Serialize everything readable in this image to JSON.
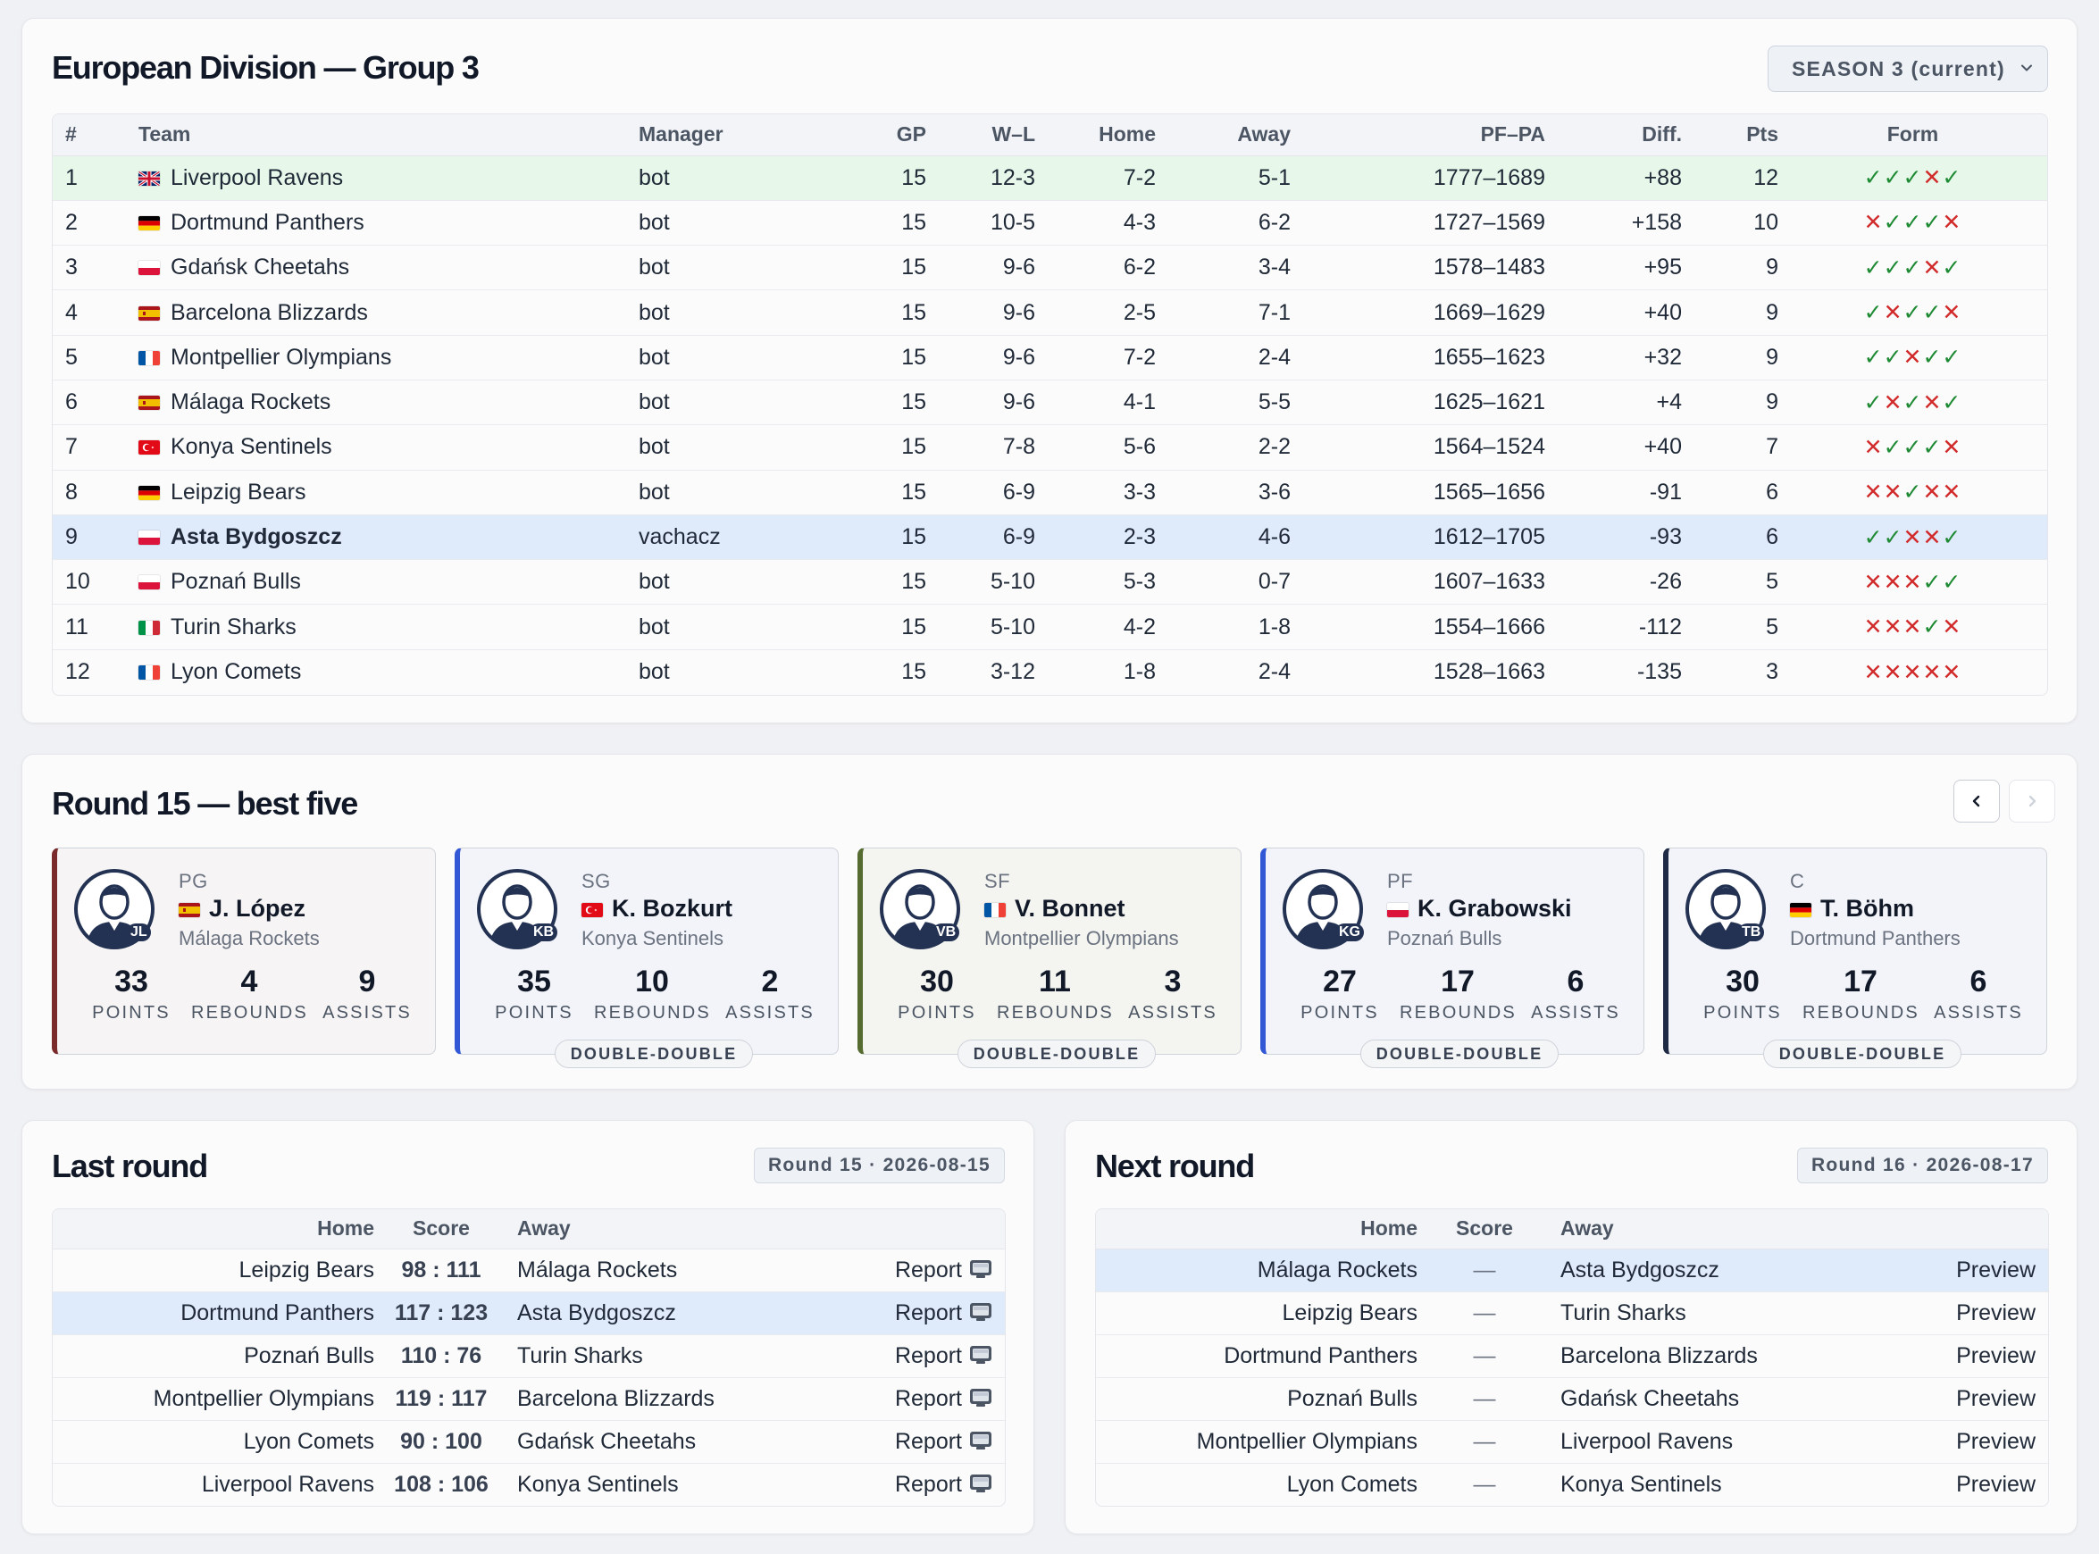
{
  "standings": {
    "title": "European Division — Group 3",
    "season_select": "SEASON 3 (current)",
    "columns": [
      "#",
      "Team",
      "Manager",
      "GP",
      "W–L",
      "Home",
      "Away",
      "PF–PA",
      "Diff.",
      "Pts",
      "Form"
    ],
    "rows": [
      {
        "rank": "1",
        "flag": "gb",
        "team": "Liverpool Ravens",
        "manager": "bot",
        "gp": "15",
        "wl": "12-3",
        "home": "7-2",
        "away": "5-1",
        "pfpa": "1777–1689",
        "diff": "+88",
        "pts": "12",
        "form": "WWWLW"
      },
      {
        "rank": "2",
        "flag": "de",
        "team": "Dortmund Panthers",
        "manager": "bot",
        "gp": "15",
        "wl": "10-5",
        "home": "4-3",
        "away": "6-2",
        "pfpa": "1727–1569",
        "diff": "+158",
        "pts": "10",
        "form": "LWWWL"
      },
      {
        "rank": "3",
        "flag": "pl",
        "team": "Gdańsk Cheetahs",
        "manager": "bot",
        "gp": "15",
        "wl": "9-6",
        "home": "6-2",
        "away": "3-4",
        "pfpa": "1578–1483",
        "diff": "+95",
        "pts": "9",
        "form": "WWWLW"
      },
      {
        "rank": "4",
        "flag": "es",
        "team": "Barcelona Blizzards",
        "manager": "bot",
        "gp": "15",
        "wl": "9-6",
        "home": "2-5",
        "away": "7-1",
        "pfpa": "1669–1629",
        "diff": "+40",
        "pts": "9",
        "form": "WLWWL"
      },
      {
        "rank": "5",
        "flag": "fr",
        "team": "Montpellier Olympians",
        "manager": "bot",
        "gp": "15",
        "wl": "9-6",
        "home": "7-2",
        "away": "2-4",
        "pfpa": "1655–1623",
        "diff": "+32",
        "pts": "9",
        "form": "WWLWW"
      },
      {
        "rank": "6",
        "flag": "es",
        "team": "Málaga Rockets",
        "manager": "bot",
        "gp": "15",
        "wl": "9-6",
        "home": "4-1",
        "away": "5-5",
        "pfpa": "1625–1621",
        "diff": "+4",
        "pts": "9",
        "form": "WLWLW"
      },
      {
        "rank": "7",
        "flag": "tr",
        "team": "Konya Sentinels",
        "manager": "bot",
        "gp": "15",
        "wl": "7-8",
        "home": "5-6",
        "away": "2-2",
        "pfpa": "1564–1524",
        "diff": "+40",
        "pts": "7",
        "form": "LWWWL"
      },
      {
        "rank": "8",
        "flag": "de",
        "team": "Leipzig Bears",
        "manager": "bot",
        "gp": "15",
        "wl": "6-9",
        "home": "3-3",
        "away": "3-6",
        "pfpa": "1565–1656",
        "diff": "-91",
        "pts": "6",
        "form": "LLWLL"
      },
      {
        "rank": "9",
        "flag": "pl",
        "team": "Asta Bydgoszcz",
        "manager": "vachacz",
        "gp": "15",
        "wl": "6-9",
        "home": "2-3",
        "away": "4-6",
        "pfpa": "1612–1705",
        "diff": "-93",
        "pts": "6",
        "form": "WWLLW"
      },
      {
        "rank": "10",
        "flag": "pl",
        "team": "Poznań Bulls",
        "manager": "bot",
        "gp": "15",
        "wl": "5-10",
        "home": "5-3",
        "away": "0-7",
        "pfpa": "1607–1633",
        "diff": "-26",
        "pts": "5",
        "form": "LLLWW"
      },
      {
        "rank": "11",
        "flag": "it",
        "team": "Turin Sharks",
        "manager": "bot",
        "gp": "15",
        "wl": "5-10",
        "home": "4-2",
        "away": "1-8",
        "pfpa": "1554–1666",
        "diff": "-112",
        "pts": "5",
        "form": "LLLWL"
      },
      {
        "rank": "12",
        "flag": "fr",
        "team": "Lyon Comets",
        "manager": "bot",
        "gp": "15",
        "wl": "3-12",
        "home": "1-8",
        "away": "2-4",
        "pfpa": "1528–1663",
        "diff": "-135",
        "pts": "3",
        "form": "LLLLL"
      }
    ]
  },
  "best_five": {
    "title": "Round 15 — best five",
    "prev_label": "‹",
    "next_label": "›",
    "players": [
      {
        "pos": "PG",
        "initials": "JL",
        "flag": "es",
        "name": "J. López",
        "team": "Málaga Rockets",
        "points": "33",
        "rebounds": "4",
        "assists": "9",
        "badge": "",
        "accent": "#7a2a2a"
      },
      {
        "pos": "SG",
        "initials": "KB",
        "flag": "tr",
        "name": "K. Bozkurt",
        "team": "Konya Sentinels",
        "points": "35",
        "rebounds": "10",
        "assists": "2",
        "badge": "DOUBLE-DOUBLE",
        "accent": "#3358d6"
      },
      {
        "pos": "SF",
        "initials": "VB",
        "flag": "fr",
        "name": "V. Bonnet",
        "team": "Montpellier Olympians",
        "points": "30",
        "rebounds": "11",
        "assists": "3",
        "badge": "DOUBLE-DOUBLE",
        "accent": "#556b2f"
      },
      {
        "pos": "PF",
        "initials": "KG",
        "flag": "pl",
        "name": "K. Grabowski",
        "team": "Poznań Bulls",
        "points": "27",
        "rebounds": "17",
        "assists": "6",
        "badge": "DOUBLE-DOUBLE",
        "accent": "#3358d6"
      },
      {
        "pos": "C",
        "initials": "TB",
        "flag": "de",
        "name": "T. Böhm",
        "team": "Dortmund Panthers",
        "points": "30",
        "rebounds": "17",
        "assists": "6",
        "badge": "DOUBLE-DOUBLE",
        "accent": "#1f2a44"
      }
    ],
    "stat_labels": {
      "points": "POINTS",
      "rebounds": "REBOUNDS",
      "assists": "ASSISTS"
    }
  },
  "last_round": {
    "title": "Last round",
    "badge": "Round 15 · 2026-08-15",
    "columns": {
      "home": "Home",
      "score": "Score",
      "away": "Away"
    },
    "action_label": "Report",
    "games": [
      {
        "home": "Leipzig Bears",
        "score": "98 : 111",
        "away": "Málaga Rockets",
        "highlight": false
      },
      {
        "home": "Dortmund Panthers",
        "score": "117 : 123",
        "away": "Asta Bydgoszcz",
        "highlight": true
      },
      {
        "home": "Poznań Bulls",
        "score": "110 : 76",
        "away": "Turin Sharks",
        "highlight": false
      },
      {
        "home": "Montpellier Olympians",
        "score": "119 : 117",
        "away": "Barcelona Blizzards",
        "highlight": false
      },
      {
        "home": "Lyon Comets",
        "score": "90 : 100",
        "away": "Gdańsk Cheetahs",
        "highlight": false
      },
      {
        "home": "Liverpool Ravens",
        "score": "108 : 106",
        "away": "Konya Sentinels",
        "highlight": false
      }
    ]
  },
  "next_round": {
    "title": "Next round",
    "badge": "Round 16 · 2026-08-17",
    "columns": {
      "home": "Home",
      "score": "Score",
      "away": "Away"
    },
    "action_label": "Preview",
    "games": [
      {
        "home": "Málaga Rockets",
        "score": "—",
        "away": "Asta Bydgoszcz",
        "highlight": true
      },
      {
        "home": "Leipzig Bears",
        "score": "—",
        "away": "Turin Sharks",
        "highlight": false
      },
      {
        "home": "Dortmund Panthers",
        "score": "—",
        "away": "Barcelona Blizzards",
        "highlight": false
      },
      {
        "home": "Poznań Bulls",
        "score": "—",
        "away": "Gdańsk Cheetahs",
        "highlight": false
      },
      {
        "home": "Montpellier Olympians",
        "score": "—",
        "away": "Liverpool Ravens",
        "highlight": false
      },
      {
        "home": "Lyon Comets",
        "score": "—",
        "away": "Konya Sentinels",
        "highlight": false
      }
    ]
  },
  "form_symbols": {
    "W": "✓",
    "L": "✕"
  },
  "colors": {
    "win": "#1e8a33",
    "loss": "#d12b2b",
    "leader_row": "#e7f8ea",
    "my_team_row": "#dfeafb"
  }
}
